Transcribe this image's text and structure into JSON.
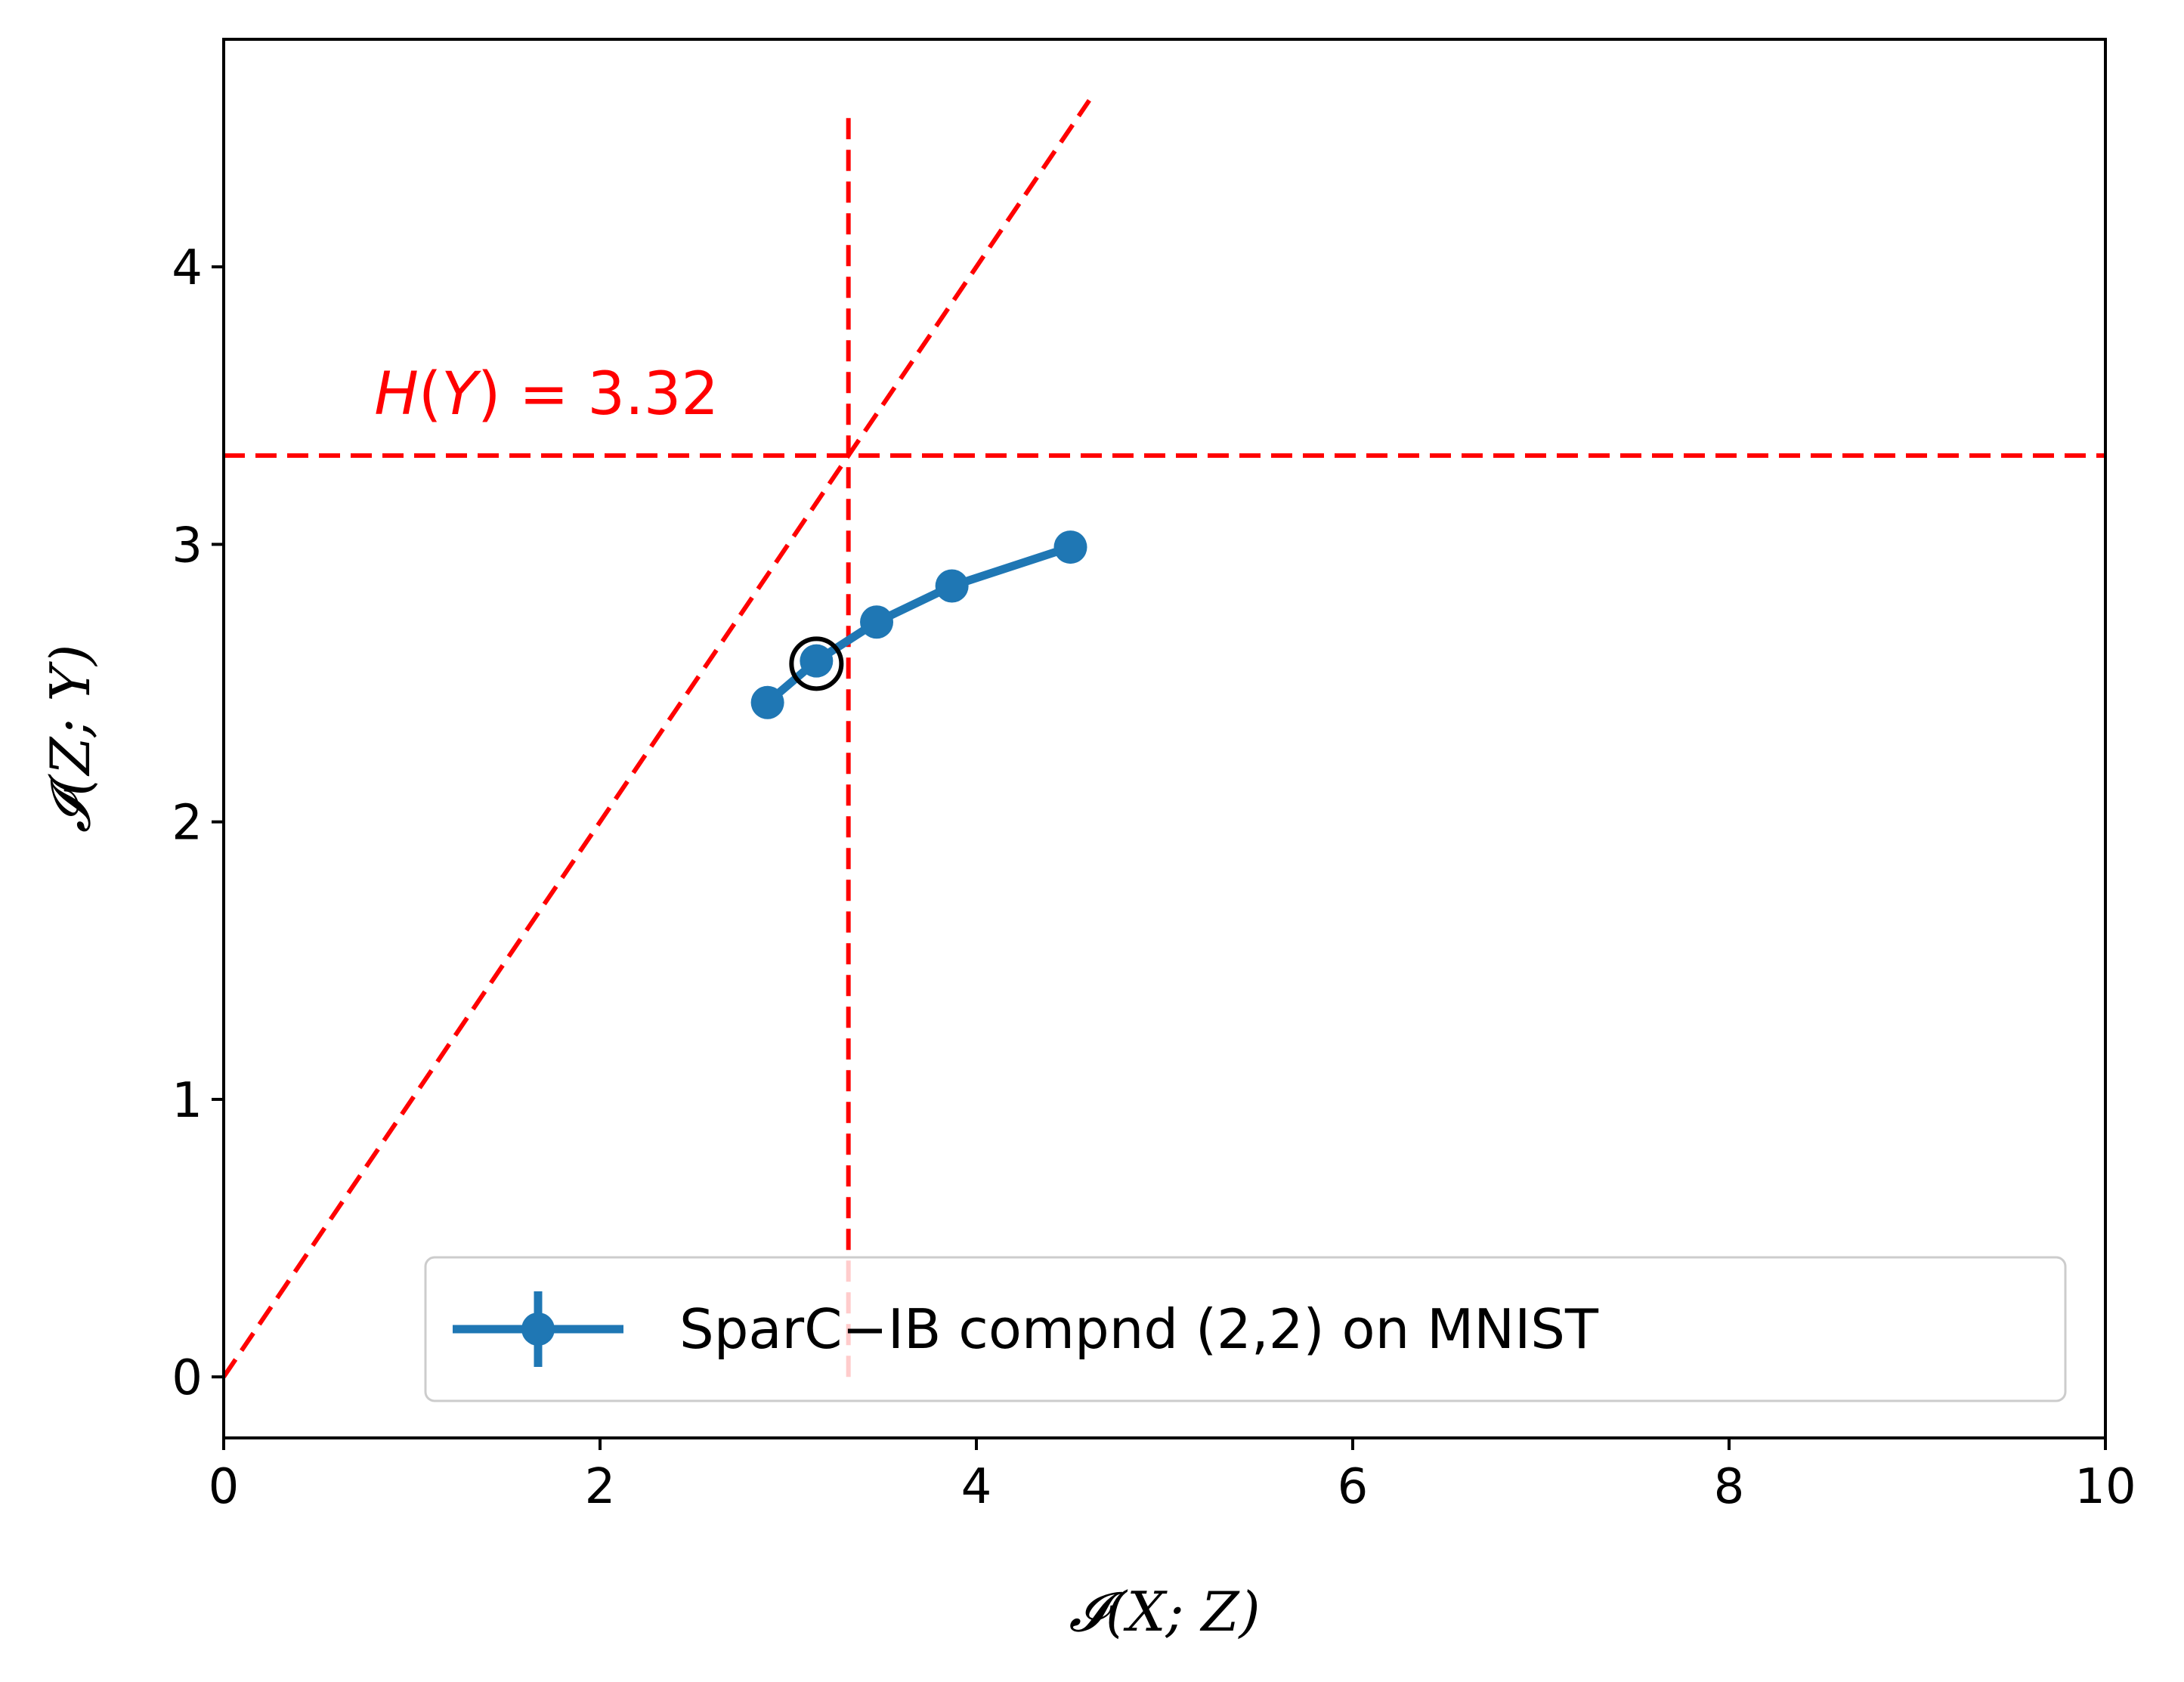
{
  "chart_data": {
    "type": "line",
    "xlabel": "𝓘(X; Z)",
    "ylabel": "𝓘(Z; Y)",
    "xlim": [
      0,
      10
    ],
    "ylim": [
      -0.22,
      4.82
    ],
    "xticks": [
      0,
      2,
      4,
      6,
      8,
      10
    ],
    "yticks": [
      0,
      1,
      2,
      3,
      4
    ],
    "xtick_labels": [
      "0",
      "2",
      "4",
      "6",
      "8",
      "10"
    ],
    "ytick_labels": [
      "0",
      "1",
      "2",
      "3",
      "4"
    ],
    "grid": false,
    "legend_position": "lower-right",
    "series": [
      {
        "name": "SparC−IB compnd (2,2) on MNIST",
        "color": "#1f77b4",
        "x": [
          2.89,
          3.15,
          3.47,
          3.87,
          4.5
        ],
        "y": [
          2.43,
          2.58,
          2.72,
          2.85,
          2.99
        ]
      }
    ],
    "highlight_point": {
      "x": 3.15,
      "y": 2.57
    },
    "reference_lines": {
      "color": "#ff0000",
      "horizontal_y": 3.32,
      "vertical_x": 3.32,
      "vertical_y_range": [
        0,
        4.56
      ],
      "diagonal_from": [
        0,
        0
      ],
      "diagonal_to": [
        4.6,
        4.6
      ]
    },
    "annotations": [
      {
        "text_prefix": "H",
        "text_var": "Y",
        "text_value": "= 3.32",
        "x": 0.8,
        "y": 3.47
      }
    ]
  }
}
